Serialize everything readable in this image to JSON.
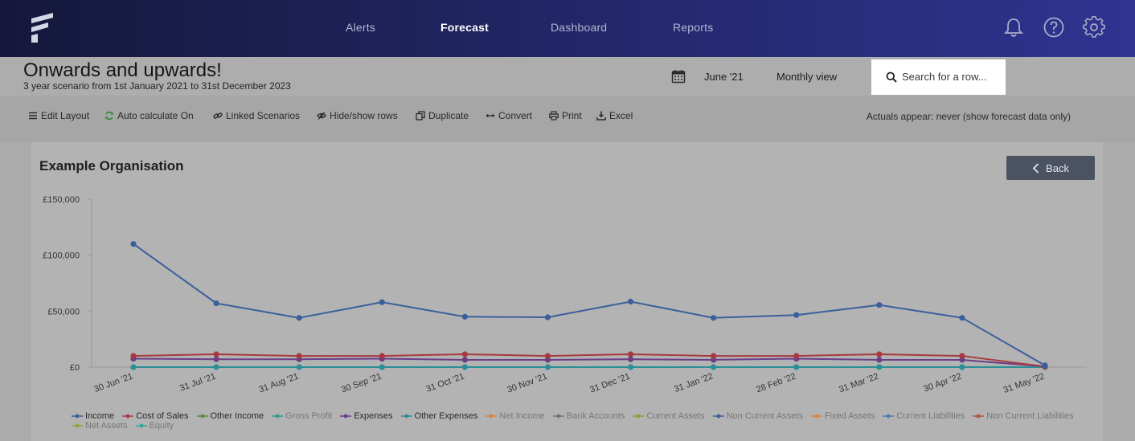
{
  "nav": {
    "items": [
      {
        "label": "Alerts",
        "active": false
      },
      {
        "label": "Forecast",
        "active": true
      },
      {
        "label": "Dashboard",
        "active": false
      },
      {
        "label": "Reports",
        "active": false
      }
    ],
    "icons": [
      "bell-icon",
      "help-icon",
      "gear-icon"
    ]
  },
  "header": {
    "title": "Onwards and upwards!",
    "subtitle": "3 year scenario from 1st January 2021 to 31st December 2023",
    "date": "June '21",
    "view": "Monthly view",
    "search_placeholder": "Search for a row..."
  },
  "toolbar": {
    "edit_layout": "Edit Layout",
    "auto_calc": "Auto calculate On",
    "linked": "Linked Scenarios",
    "hide_show": "Hide/show rows",
    "duplicate": "Duplicate",
    "convert": "Convert",
    "print": "Print",
    "excel": "Excel",
    "actuals": "Actuals appear: never (show forecast data only)"
  },
  "panel": {
    "title": "Example Organisation",
    "back_label": "Back"
  },
  "colors": {
    "income": "#3a5f9c",
    "cost_of_sales": "#a73a3f",
    "expenses": "#6b3e88",
    "other_expenses": "#2b8f96"
  },
  "chart_data": {
    "type": "line",
    "x": [
      "30 Jun '21",
      "31 Jul '21",
      "31 Aug '21",
      "30 Sep '21",
      "31 Oct '21",
      "30 Nov '21",
      "31 Dec '21",
      "31 Jan '22",
      "28 Feb '22",
      "31 Mar '22",
      "30 Apr '22",
      "31 May '22"
    ],
    "y_ticks": [
      "£0",
      "£50,000",
      "£100,000",
      "£150,000"
    ],
    "ylim": [
      0,
      150000
    ],
    "series": [
      {
        "name": "Income",
        "color": "#3a5f9c",
        "values": [
          110000,
          57000,
          44000,
          58000,
          45000,
          44500,
          58500,
          44000,
          46500,
          55500,
          44000,
          1500
        ],
        "muted": false
      },
      {
        "name": "Cost of Sales",
        "color": "#a73a3f",
        "values": [
          10000,
          11500,
          10000,
          10000,
          11500,
          10000,
          11500,
          10000,
          10000,
          11500,
          10000,
          500
        ],
        "muted": false
      },
      {
        "name": "Other Income",
        "color": "#5d8a3a",
        "values": null,
        "muted": false
      },
      {
        "name": "Gross Profit",
        "color": "#3a9a8e",
        "values": null,
        "muted": true
      },
      {
        "name": "Expenses",
        "color": "#6b3e88",
        "values": [
          7500,
          7000,
          7000,
          7500,
          6500,
          6500,
          7000,
          6500,
          7500,
          6500,
          6500,
          500
        ],
        "muted": false
      },
      {
        "name": "Other Expenses",
        "color": "#2b8f96",
        "values": [
          0,
          0,
          0,
          0,
          0,
          0,
          0,
          0,
          0,
          0,
          0,
          0
        ],
        "muted": false
      },
      {
        "name": "Net Income",
        "color": "#d9823f",
        "values": null,
        "muted": true
      },
      {
        "name": "Bank Accounts",
        "color": "#7a6c8a",
        "values": null,
        "muted": true
      },
      {
        "name": "Current Assets",
        "color": "#8c9a3a",
        "values": null,
        "muted": true
      },
      {
        "name": "Non Current Assets",
        "color": "#3a5f9c",
        "values": null,
        "muted": true
      },
      {
        "name": "Fixed Assets",
        "color": "#d9823f",
        "values": null,
        "muted": true
      },
      {
        "name": "Current Liabilities",
        "color": "#4d78b5",
        "values": null,
        "muted": true
      },
      {
        "name": "Non Current Liabilities",
        "color": "#b5523a",
        "values": null,
        "muted": true
      },
      {
        "name": "Net Assets",
        "color": "#8aa63a",
        "values": null,
        "muted": true
      },
      {
        "name": "Equity",
        "color": "#2fa59b",
        "values": null,
        "muted": true
      }
    ]
  }
}
